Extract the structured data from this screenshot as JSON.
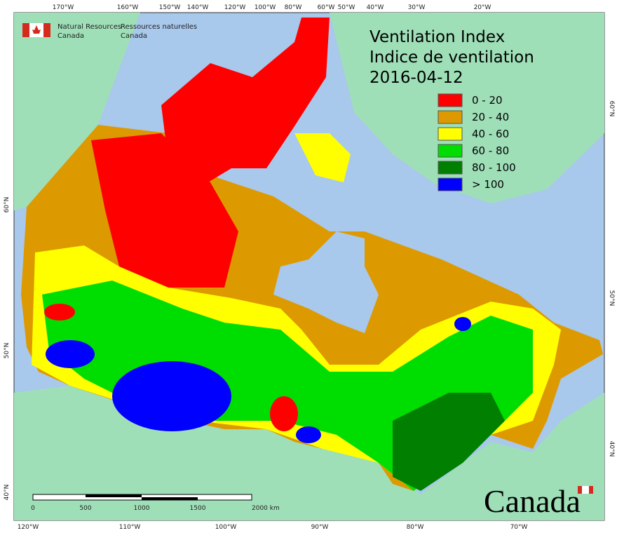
{
  "header": {
    "title_en": "Ventilation Index",
    "title_fr": "Indice de ventilation",
    "date": "2016-04-12"
  },
  "agency": {
    "en_line1": "Natural Resources",
    "en_line2": "Canada",
    "fr_line1": "Ressources naturelles",
    "fr_line2": "Canada"
  },
  "legend": [
    {
      "label": "0 - 20",
      "color": "#ff0000"
    },
    {
      "label": "20 - 40",
      "color": "#dd9a00"
    },
    {
      "label": "40 - 60",
      "color": "#ffff00"
    },
    {
      "label": "60 - 80",
      "color": "#00dd00"
    },
    {
      "label": "80 - 100",
      "color": "#007f00"
    },
    {
      "label": "> 100",
      "color": "#0000ff"
    }
  ],
  "graticule": {
    "top": [
      "170°W",
      "160°W",
      "150°W",
      "140°W",
      "120°W",
      "100°W",
      "80°W",
      "60°W",
      "50°W",
      "40°W",
      "30°W",
      "20°W"
    ],
    "bottom": [
      "120°W",
      "110°W",
      "100°W",
      "90°W",
      "80°W",
      "70°W"
    ],
    "right": [
      "60°N",
      "50°N",
      "40°N"
    ],
    "left": [
      "60°N",
      "50°N",
      "40°N"
    ]
  },
  "scale_bar": [
    "0",
    "500",
    "1000",
    "1500",
    "2000  km"
  ],
  "wordmark": "Canada"
}
